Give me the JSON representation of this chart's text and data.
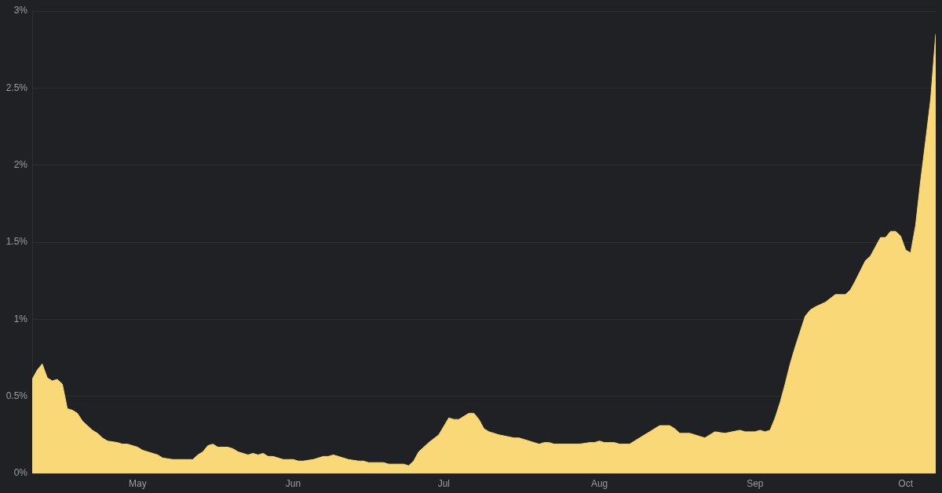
{
  "chart_data": {
    "type": "area",
    "color": "#f9d977",
    "x": [
      "--04-10",
      "--04-11",
      "--04-12",
      "--04-13",
      "--04-14",
      "--04-15",
      "--04-16",
      "--04-17",
      "--04-18",
      "--04-19",
      "--04-20",
      "--04-21",
      "--04-22",
      "--04-23",
      "--04-24",
      "--04-25",
      "--04-27",
      "--04-28",
      "--04-29",
      "--05-01",
      "--05-02",
      "--05-03",
      "--05-05",
      "--05-06",
      "--05-08",
      "--05-12",
      "--05-13",
      "--05-14",
      "--05-15",
      "--05-16",
      "--05-17",
      "--05-19",
      "--05-20",
      "--05-21",
      "--05-23",
      "--05-24",
      "--05-25",
      "--05-26",
      "--05-27",
      "--05-28",
      "--05-30",
      "--06-01",
      "--06-02",
      "--06-03",
      "--06-05",
      "--06-07",
      "--06-08",
      "--06-09",
      "--06-11",
      "--06-12",
      "--06-14",
      "--06-15",
      "--06-16",
      "--06-19",
      "--06-20",
      "--06-23",
      "--06-24",
      "--06-25",
      "--06-26",
      "--06-28",
      "--06-30",
      "--07-02",
      "--07-03",
      "--07-04",
      "--07-06",
      "--07-07",
      "--07-08",
      "--07-09",
      "--07-10",
      "--07-12",
      "--07-15",
      "--07-16",
      "--07-18",
      "--07-20",
      "--07-21",
      "--07-22",
      "--07-23",
      "--07-28",
      "--07-30",
      "--07-31",
      "--08-01",
      "--08-02",
      "--08-04",
      "--08-05",
      "--08-07",
      "--08-08",
      "--08-10",
      "--08-11",
      "--08-13",
      "--08-15",
      "--08-16",
      "--08-17",
      "--08-19",
      "--08-21",
      "--08-22",
      "--08-24",
      "--08-26",
      "--08-29",
      "--08-30",
      "--09-01",
      "--09-02",
      "--09-03",
      "--09-04",
      "--09-05",
      "--09-06",
      "--09-07",
      "--09-08",
      "--09-09",
      "--09-10",
      "--09-11",
      "--09-12",
      "--09-13",
      "--09-15",
      "--09-17",
      "--09-18",
      "--09-19",
      "--09-20",
      "--09-21",
      "--09-23",
      "--09-24",
      "--09-26",
      "--09-27",
      "--09-28",
      "--09-29",
      "--09-30",
      "--10-01",
      "--10-02",
      "--10-03",
      "--10-04",
      "--10-05",
      "--10-06",
      "--10-07"
    ],
    "values": [
      0.61,
      0.67,
      0.71,
      0.62,
      0.6,
      0.61,
      0.58,
      0.42,
      0.41,
      0.39,
      0.34,
      0.31,
      0.28,
      0.26,
      0.23,
      0.21,
      0.2,
      0.19,
      0.19,
      0.17,
      0.15,
      0.14,
      0.12,
      0.1,
      0.09,
      0.09,
      0.12,
      0.14,
      0.18,
      0.19,
      0.17,
      0.17,
      0.16,
      0.14,
      0.12,
      0.13,
      0.12,
      0.13,
      0.11,
      0.11,
      0.09,
      0.09,
      0.08,
      0.08,
      0.09,
      0.11,
      0.11,
      0.12,
      0.1,
      0.09,
      0.08,
      0.08,
      0.07,
      0.07,
      0.06,
      0.06,
      0.05,
      0.08,
      0.14,
      0.2,
      0.25,
      0.36,
      0.35,
      0.35,
      0.39,
      0.39,
      0.35,
      0.29,
      0.27,
      0.25,
      0.23,
      0.23,
      0.21,
      0.19,
      0.2,
      0.2,
      0.19,
      0.19,
      0.2,
      0.2,
      0.21,
      0.2,
      0.2,
      0.19,
      0.19,
      0.21,
      0.25,
      0.27,
      0.31,
      0.31,
      0.29,
      0.26,
      0.26,
      0.24,
      0.23,
      0.27,
      0.26,
      0.28,
      0.27,
      0.27,
      0.28,
      0.27,
      0.28,
      0.36,
      0.46,
      0.58,
      0.71,
      0.82,
      0.92,
      1.02,
      1.06,
      1.08,
      1.11,
      1.16,
      1.16,
      1.16,
      1.19,
      1.25,
      1.38,
      1.41,
      1.53,
      1.53,
      1.57,
      1.57,
      1.54,
      1.45,
      1.43,
      1.61,
      1.9,
      2.16,
      2.43,
      2.85
    ],
    "xlim": [
      "--04-10",
      "--10-07"
    ],
    "xticks": [
      {
        "value": "--05-01",
        "label": "May"
      },
      {
        "value": "--06-01",
        "label": "Jun"
      },
      {
        "value": "--07-01",
        "label": "Jul"
      },
      {
        "value": "--08-01",
        "label": "Aug"
      },
      {
        "value": "--09-01",
        "label": "Sep"
      },
      {
        "value": "--10-01",
        "label": "Oct"
      }
    ],
    "ylim": [
      0,
      3
    ],
    "yticks": [
      {
        "value": 0,
        "label": "0%"
      },
      {
        "value": 0.5,
        "label": "0.5%"
      },
      {
        "value": 1,
        "label": "1%"
      },
      {
        "value": 1.5,
        "label": "1.5%"
      },
      {
        "value": 2,
        "label": "2%"
      },
      {
        "value": 2.5,
        "label": "2.5%"
      },
      {
        "value": 3,
        "label": "3%"
      }
    ],
    "grid": "y"
  }
}
